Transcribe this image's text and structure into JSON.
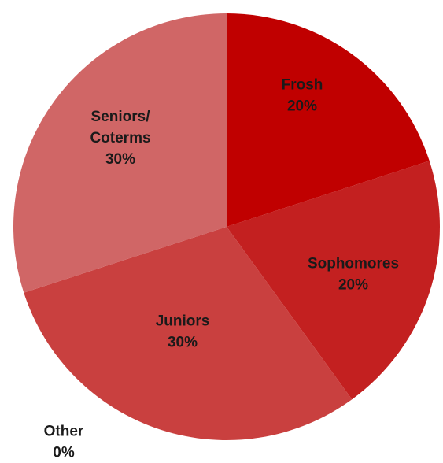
{
  "chart_data": {
    "type": "pie",
    "title": "",
    "slices": [
      {
        "label_lines": [
          "Frosh"
        ],
        "value_label": "20%",
        "value": 20,
        "color": "#C00000"
      },
      {
        "label_lines": [
          "Sophomores"
        ],
        "value_label": "20%",
        "value": 20,
        "color": "#C32020"
      },
      {
        "label_lines": [
          "Juniors"
        ],
        "value_label": "30%",
        "value": 30,
        "color": "#C9403F"
      },
      {
        "label_lines": [
          "Seniors/",
          "Coterms"
        ],
        "value_label": "30%",
        "value": 30,
        "color": "#D06666"
      },
      {
        "label_lines": [
          "Other"
        ],
        "value_label": "0%",
        "value": 0,
        "color": "#D88C8C"
      }
    ],
    "start_angle_deg": 0,
    "direction": "clockwise",
    "legend": "none"
  }
}
